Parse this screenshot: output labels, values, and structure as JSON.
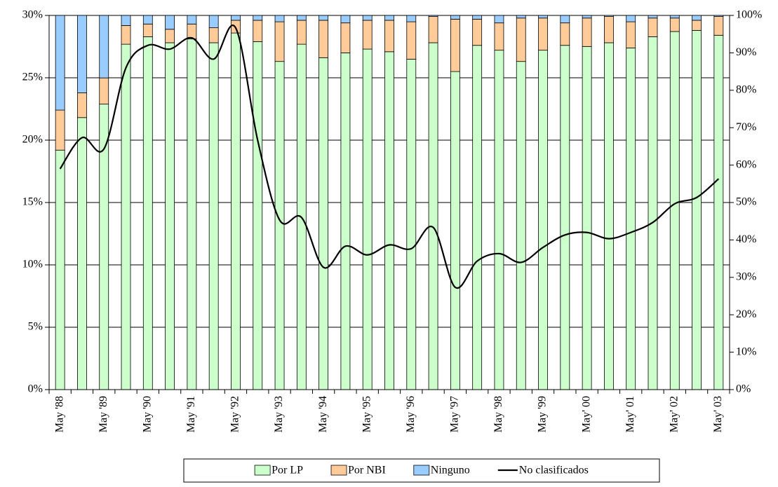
{
  "chart_data": {
    "type": "bar",
    "categories": [
      "May '88",
      null,
      "May '89",
      null,
      "May '90",
      null,
      "May '91",
      null,
      "May '92",
      null,
      "May '93",
      null,
      "May '94",
      null,
      "May '95",
      null,
      "May '96",
      null,
      "May '97",
      null,
      "May '98",
      null,
      "May '99",
      null,
      "May' 00",
      null,
      "May' 01",
      null,
      "May' 02",
      null,
      "May' 03"
    ],
    "series": [
      {
        "name": "Por LP",
        "type": "bar",
        "axis": "y2",
        "color": "#ccffcc",
        "values": [
          64,
          72.7,
          76.3,
          92.3,
          94.3,
          92.7,
          93.7,
          92.7,
          95.3,
          93,
          87.7,
          92.3,
          88.7,
          90,
          91,
          90.3,
          88.3,
          92.7,
          85,
          92,
          90.7,
          87.7,
          90.7,
          92,
          91.7,
          92.7,
          91.3,
          94.3,
          95.7,
          96,
          94.7
        ]
      },
      {
        "name": "Por NBI",
        "type": "bar",
        "axis": "y2",
        "color": "#ffcc99",
        "values": [
          10.7,
          6.6,
          7,
          5,
          3.4,
          3.6,
          4,
          4,
          3.4,
          5.7,
          10.6,
          6.4,
          10,
          8,
          7.7,
          8.4,
          10,
          7,
          14,
          7,
          7.3,
          11.6,
          8.6,
          6,
          7.6,
          7,
          7,
          5,
          3.6,
          2.7,
          5
        ]
      },
      {
        "name": "Ninguno",
        "type": "bar",
        "axis": "y2",
        "color": "#99ccff",
        "values": [
          25.3,
          20.7,
          16.7,
          2.7,
          2.3,
          3.7,
          2.3,
          3.3,
          1.3,
          1.3,
          1.7,
          1.3,
          1.3,
          2,
          1.3,
          1.3,
          1.7,
          0.3,
          1,
          1,
          2,
          0.7,
          0.7,
          2,
          0.7,
          0.3,
          1.7,
          0.7,
          0.7,
          1.3,
          0.3
        ]
      },
      {
        "name": "No clasificados",
        "type": "line",
        "axis": "y",
        "color": "#000000",
        "values": [
          17.7,
          20.2,
          19.3,
          25.8,
          27.6,
          27.3,
          28.2,
          26.5,
          29.0,
          20,
          13.6,
          13.8,
          9.8,
          11.5,
          10.8,
          11.6,
          11.3,
          13.0,
          8.2,
          10.3,
          10.9,
          10.2,
          11.4,
          12.4,
          12.6,
          12.1,
          12.6,
          13.4,
          14.9,
          15.4,
          16.9
        ]
      }
    ],
    "ylim": [
      0,
      30
    ],
    "yticks": [
      {
        "value": 0,
        "label": "0%"
      },
      {
        "value": 5,
        "label": "5%"
      },
      {
        "value": 10,
        "label": "10%"
      },
      {
        "value": 15,
        "label": "15%"
      },
      {
        "value": 20,
        "label": "20%"
      },
      {
        "value": 25,
        "label": "25%"
      },
      {
        "value": 30,
        "label": "30%"
      }
    ],
    "y2lim": [
      0,
      100
    ],
    "y2ticks": [
      {
        "value": 0,
        "label": "0%"
      },
      {
        "value": 10,
        "label": "10%"
      },
      {
        "value": 20,
        "label": "20%"
      },
      {
        "value": 30,
        "label": "30%"
      },
      {
        "value": 40,
        "label": "40%"
      },
      {
        "value": 50,
        "label": "50%"
      },
      {
        "value": 60,
        "label": "60%"
      },
      {
        "value": 70,
        "label": "70%"
      },
      {
        "value": 80,
        "label": "80%"
      },
      {
        "value": 90,
        "label": "90%"
      },
      {
        "value": 100,
        "label": "100%"
      }
    ],
    "grid": true,
    "legend": "bottom"
  }
}
